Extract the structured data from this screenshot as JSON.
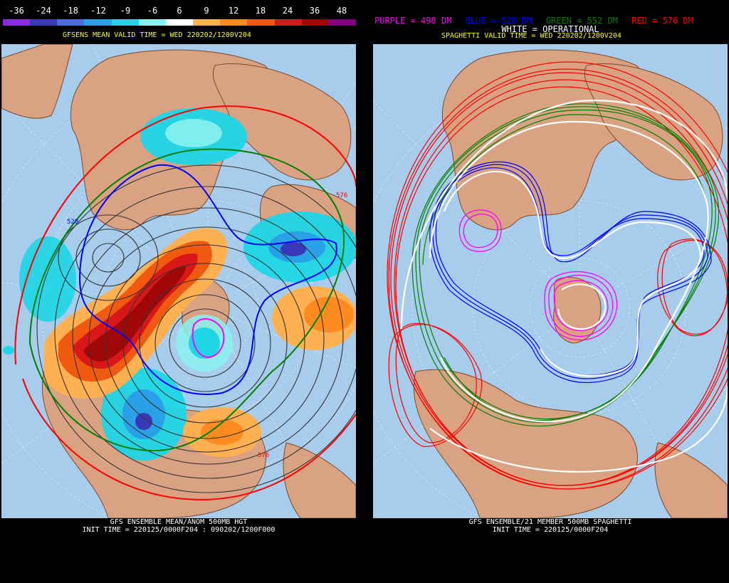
{
  "left": {
    "colorbar": {
      "labels": [
        "-36",
        "-24",
        "-18",
        "-12",
        "-9",
        "-6",
        "6",
        "9",
        "12",
        "18",
        "24",
        "36",
        "48"
      ],
      "colors": [
        "#8a2be2",
        "#3838b8",
        "#4a6ee0",
        "#2aa0e8",
        "#1ed6e6",
        "#88f2f0",
        "#ffffff",
        "#ffb050",
        "#ff8a20",
        "#f05a10",
        "#d81818",
        "#a00808",
        "#800080"
      ]
    },
    "valid_title": "GFSENS MEAN VALID TIME = WED 220202/1200V204",
    "contour_labels": [
      "528",
      "576",
      "576"
    ],
    "footer_line1": "GFS ENSEMBLE MEAN/ANOM 500MB HGT",
    "footer_line2": "INIT TIME = 220125/0000F204 : 090202/1200F000"
  },
  "right": {
    "legend": {
      "purple": "PURPLE = 498 DM",
      "blue": "BLUE = 528 DM",
      "green": "GREEN = 552 DM",
      "red": "RED = 576 DM",
      "white": "WHITE = OPERATIONAL"
    },
    "valid_title": "SPAGHETTI VALID TIME = WED 220202/1200V204",
    "footer_line1": "GFS ENSEMBLE/21 MEMBER 500MB SPAGHETTI",
    "footer_line2": "INIT TIME = 220125/0000F204"
  },
  "colors": {
    "ocean": "#a8ccec",
    "land": "#d9a383",
    "coast": "#7a4a2a",
    "purple": "#ff00ff",
    "blue": "#0000ff",
    "green": "#008000",
    "red": "#ff0000"
  }
}
